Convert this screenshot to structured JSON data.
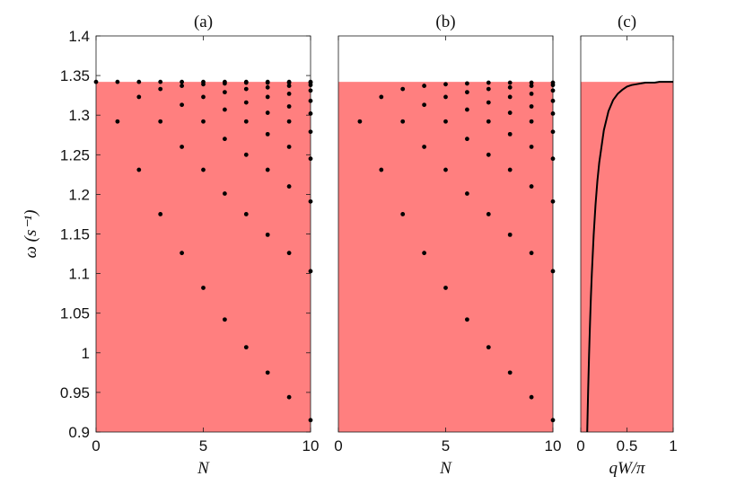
{
  "chart_data": [
    {
      "type": "scatter",
      "panel_title": "(a)",
      "xlabel": "N",
      "ylabel": "ω (s⁻¹)",
      "xlim": [
        0,
        10
      ],
      "ylim": [
        0.9,
        1.4
      ],
      "xticks": [
        "0",
        "5",
        "10"
      ],
      "yticks": [
        "0.9",
        "0.95",
        "1",
        "1.05",
        "1.1",
        "1.15",
        "1.2",
        "1.25",
        "1.3",
        "1.35",
        "1.4"
      ],
      "band_top": 1.342,
      "band_color": "#ff7f7f",
      "point_color": "#000000",
      "grid": false,
      "points": [
        [
          0,
          1.342
        ],
        [
          1,
          1.342
        ],
        [
          1,
          1.292
        ],
        [
          2,
          1.342
        ],
        [
          2,
          1.323
        ],
        [
          2,
          1.231
        ],
        [
          3,
          1.342
        ],
        [
          3,
          1.333
        ],
        [
          3,
          1.292
        ],
        [
          3,
          1.175
        ],
        [
          4,
          1.342
        ],
        [
          4,
          1.337
        ],
        [
          4,
          1.313
        ],
        [
          4,
          1.26
        ],
        [
          4,
          1.126
        ],
        [
          5,
          1.342
        ],
        [
          5,
          1.339
        ],
        [
          5,
          1.323
        ],
        [
          5,
          1.292
        ],
        [
          5,
          1.231
        ],
        [
          5,
          1.082
        ],
        [
          6,
          1.342
        ],
        [
          6,
          1.34
        ],
        [
          6,
          1.329
        ],
        [
          6,
          1.307
        ],
        [
          6,
          1.27
        ],
        [
          6,
          1.201
        ],
        [
          6,
          1.042
        ],
        [
          7,
          1.342
        ],
        [
          7,
          1.341
        ],
        [
          7,
          1.333
        ],
        [
          7,
          1.316
        ],
        [
          7,
          1.292
        ],
        [
          7,
          1.25
        ],
        [
          7,
          1.175
        ],
        [
          7,
          1.007
        ],
        [
          8,
          1.342
        ],
        [
          8,
          1.341
        ],
        [
          8,
          1.335
        ],
        [
          8,
          1.323
        ],
        [
          8,
          1.303
        ],
        [
          8,
          1.276
        ],
        [
          8,
          1.231
        ],
        [
          8,
          1.149
        ],
        [
          8,
          0.975
        ],
        [
          9,
          1.342
        ],
        [
          9,
          1.341
        ],
        [
          9,
          1.337
        ],
        [
          9,
          1.327
        ],
        [
          9,
          1.311
        ],
        [
          9,
          1.292
        ],
        [
          9,
          1.26
        ],
        [
          9,
          1.21
        ],
        [
          9,
          1.126
        ],
        [
          9,
          0.944
        ],
        [
          10,
          1.342
        ],
        [
          10,
          1.341
        ],
        [
          10,
          1.338
        ],
        [
          10,
          1.331
        ],
        [
          10,
          1.318
        ],
        [
          10,
          1.302
        ],
        [
          10,
          1.279
        ],
        [
          10,
          1.245
        ],
        [
          10,
          1.191
        ],
        [
          10,
          1.103
        ],
        [
          10,
          0.915
        ]
      ]
    },
    {
      "type": "scatter",
      "panel_title": "(b)",
      "xlabel": "N",
      "xlim": [
        0,
        10
      ],
      "ylim": [
        0.9,
        1.4
      ],
      "xticks": [
        "0",
        "5",
        "10"
      ],
      "band_top": 1.342,
      "band_color": "#ff7f7f",
      "point_color": "#000000",
      "grid": false,
      "points": [
        [
          1,
          1.292
        ],
        [
          2,
          1.323
        ],
        [
          2,
          1.231
        ],
        [
          3,
          1.333
        ],
        [
          3,
          1.292
        ],
        [
          3,
          1.175
        ],
        [
          4,
          1.337
        ],
        [
          4,
          1.313
        ],
        [
          4,
          1.26
        ],
        [
          4,
          1.126
        ],
        [
          5,
          1.339
        ],
        [
          5,
          1.323
        ],
        [
          5,
          1.292
        ],
        [
          5,
          1.231
        ],
        [
          5,
          1.082
        ],
        [
          6,
          1.34
        ],
        [
          6,
          1.329
        ],
        [
          6,
          1.307
        ],
        [
          6,
          1.27
        ],
        [
          6,
          1.201
        ],
        [
          6,
          1.042
        ],
        [
          7,
          1.341
        ],
        [
          7,
          1.333
        ],
        [
          7,
          1.316
        ],
        [
          7,
          1.292
        ],
        [
          7,
          1.25
        ],
        [
          7,
          1.175
        ],
        [
          7,
          1.007
        ],
        [
          8,
          1.341
        ],
        [
          8,
          1.335
        ],
        [
          8,
          1.323
        ],
        [
          8,
          1.303
        ],
        [
          8,
          1.276
        ],
        [
          8,
          1.231
        ],
        [
          8,
          1.149
        ],
        [
          8,
          0.975
        ],
        [
          9,
          1.341
        ],
        [
          9,
          1.337
        ],
        [
          9,
          1.327
        ],
        [
          9,
          1.311
        ],
        [
          9,
          1.292
        ],
        [
          9,
          1.26
        ],
        [
          9,
          1.21
        ],
        [
          9,
          1.126
        ],
        [
          9,
          0.944
        ],
        [
          10,
          1.341
        ],
        [
          10,
          1.338
        ],
        [
          10,
          1.331
        ],
        [
          10,
          1.318
        ],
        [
          10,
          1.302
        ],
        [
          10,
          1.279
        ],
        [
          10,
          1.245
        ],
        [
          10,
          1.191
        ],
        [
          10,
          1.103
        ],
        [
          10,
          0.915
        ]
      ]
    },
    {
      "type": "line",
      "panel_title": "(c)",
      "xlabel": "qW/π",
      "xlim": [
        0,
        1
      ],
      "ylim": [
        0.9,
        1.4
      ],
      "xticks": [
        "0",
        "0.5",
        "1"
      ],
      "band_top": 1.342,
      "band_color": "#ff7f7f",
      "line_color": "#000000",
      "grid": false,
      "x": [
        0.07,
        0.08,
        0.09,
        0.1,
        0.11,
        0.12,
        0.14,
        0.16,
        0.18,
        0.2,
        0.25,
        0.3,
        0.35,
        0.4,
        0.45,
        0.5,
        0.55,
        0.6,
        0.65,
        0.7,
        0.75,
        0.8,
        0.85,
        0.9,
        0.95,
        1.0
      ],
      "y": [
        0.9,
        0.952,
        0.997,
        1.036,
        1.071,
        1.1,
        1.149,
        1.187,
        1.217,
        1.24,
        1.281,
        1.305,
        1.319,
        1.327,
        1.332,
        1.336,
        1.338,
        1.339,
        1.34,
        1.341,
        1.341,
        1.341,
        1.342,
        1.342,
        1.342,
        1.342
      ]
    }
  ]
}
